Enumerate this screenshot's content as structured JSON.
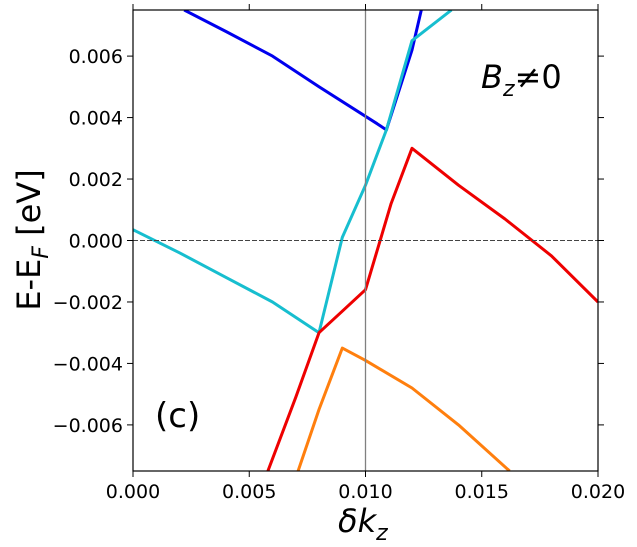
{
  "chart_data": {
    "type": "line",
    "xlabel": "δk",
    "xlabel_sub": "z",
    "ylabel_main": "E-E",
    "ylabel_sub": "F",
    "ylabel_unit": " [eV]",
    "xlim": [
      0.0,
      0.02
    ],
    "ylim": [
      -0.0075,
      0.0075
    ],
    "xticks": [
      {
        "value": 0.0,
        "label": "0.000"
      },
      {
        "value": 0.005,
        "label": "0.005"
      },
      {
        "value": 0.01,
        "label": "0.010"
      },
      {
        "value": 0.015,
        "label": "0.015"
      },
      {
        "value": 0.02,
        "label": "0.020"
      }
    ],
    "yticks": [
      {
        "value": 0.006,
        "label": "0.006"
      },
      {
        "value": 0.004,
        "label": "0.004"
      },
      {
        "value": 0.002,
        "label": "0.002"
      },
      {
        "value": 0.0,
        "label": "0.000"
      },
      {
        "value": -0.002,
        "label": "−0.002"
      },
      {
        "value": -0.004,
        "label": "−0.004"
      },
      {
        "value": -0.006,
        "label": "−0.006"
      }
    ],
    "grid": false,
    "reference_lines": [
      {
        "orientation": "vertical",
        "value": 0.01,
        "color": "#808080",
        "style": "solid"
      },
      {
        "orientation": "horizontal",
        "value": 0.0,
        "color": "#444444",
        "style": "dashed"
      }
    ],
    "annotations": {
      "panel": "(c)",
      "field_main": "B",
      "field_sub": "z",
      "field_rest": "≠0"
    },
    "series": [
      {
        "color": "#0000ee",
        "x": [
          0.0022,
          0.004,
          0.006,
          0.008,
          0.0105,
          0.0109,
          0.012,
          0.0124
        ],
        "y": [
          0.0075,
          0.0068,
          0.006,
          0.005,
          0.0038,
          0.0036,
          0.0062,
          0.0075
        ]
      },
      {
        "color": "#17becf",
        "x": [
          0.0,
          0.002,
          0.004,
          0.006,
          0.008,
          0.009,
          0.01,
          0.0109,
          0.012,
          0.0137
        ],
        "y": [
          0.00035,
          -0.0004,
          -0.0012,
          -0.002,
          -0.003,
          0.0001,
          0.0018,
          0.0036,
          0.0065,
          0.0075
        ]
      },
      {
        "color": "#ee0000",
        "x": [
          0.0058,
          0.007,
          0.008,
          0.009,
          0.01,
          0.0111,
          0.012,
          0.014,
          0.016,
          0.018,
          0.02
        ],
        "y": [
          -0.0075,
          -0.0051,
          -0.003,
          -0.0023,
          -0.0016,
          0.0012,
          0.003,
          0.0018,
          0.0007,
          -0.0005,
          -0.002
        ]
      },
      {
        "color": "#ff7f0e",
        "x": [
          0.0071,
          0.008,
          0.009,
          0.01,
          0.012,
          0.014,
          0.0162
        ],
        "y": [
          -0.0075,
          -0.0055,
          -0.0035,
          -0.0039,
          -0.0048,
          -0.006,
          -0.0075
        ]
      }
    ]
  }
}
